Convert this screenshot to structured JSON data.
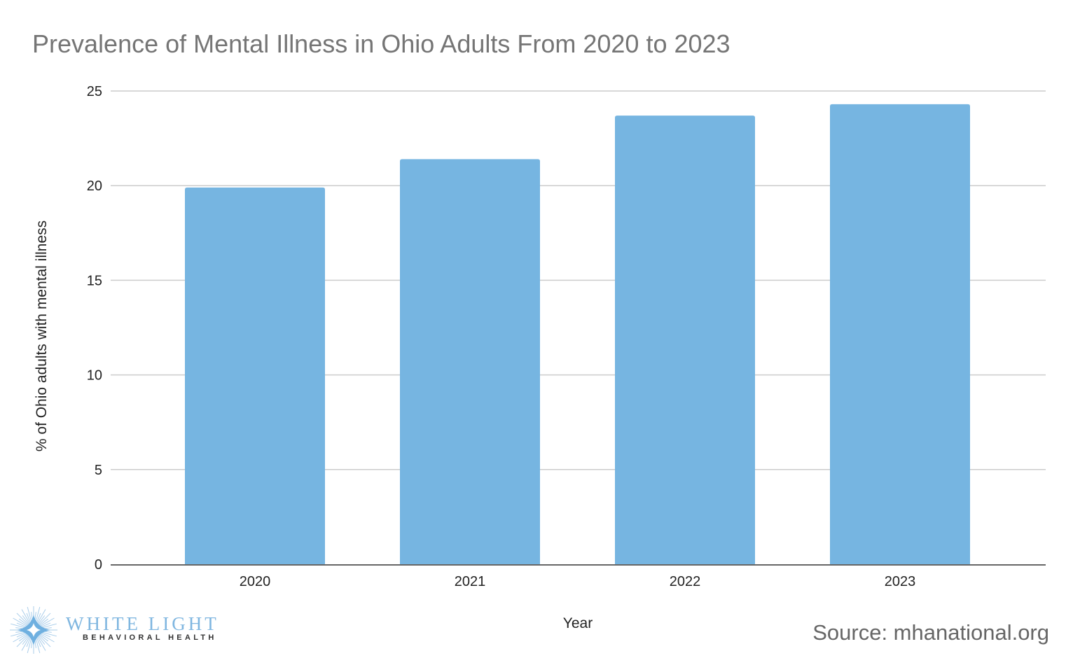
{
  "chart_data": {
    "type": "bar",
    "title": "Prevalence of Mental Illness in Ohio Adults From 2020 to 2023",
    "xlabel": "Year",
    "ylabel": "% of Ohio adults with mental illness",
    "categories": [
      "2020",
      "2021",
      "2022",
      "2023"
    ],
    "values": [
      19.9,
      21.4,
      23.7,
      24.3
    ],
    "ylim": [
      0,
      25
    ],
    "yticks": [
      "0",
      "5",
      "10",
      "15",
      "20",
      "25"
    ],
    "grid": true,
    "legend": "none",
    "bar_color": "#76b5e1"
  },
  "source": "Source: mhanational.org",
  "logo": {
    "name": "WHITE LIGHT",
    "tagline": "BEHAVIORAL HEALTH"
  }
}
